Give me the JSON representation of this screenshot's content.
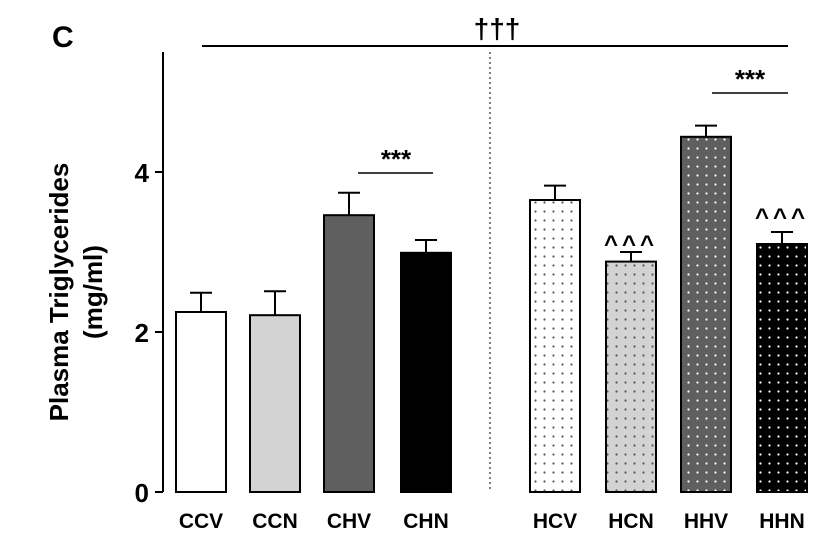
{
  "panel_label": "C",
  "chart_data": {
    "type": "bar",
    "title": "",
    "ylabel_line1": "Plasma Triglycerides",
    "ylabel_line2": "(mg/ml)",
    "xlabel": "",
    "ylim": [
      0,
      5.5
    ],
    "yticks": [
      "0",
      "2",
      "4"
    ],
    "grid": false,
    "categories": [
      "CCV",
      "CCN",
      "CHV",
      "CHN",
      "HCV",
      "HCN",
      "HHV",
      "HHN"
    ],
    "values": [
      2.25,
      2.21,
      3.46,
      2.99,
      3.65,
      2.88,
      4.44,
      3.1
    ],
    "errors": [
      0.24,
      0.3,
      0.28,
      0.16,
      0.18,
      0.12,
      0.14,
      0.15
    ],
    "fill_colors": [
      "#ffffff",
      "#d3d3d3",
      "#5f5f5f",
      "#000000",
      "#ffffff",
      "#d3d3d3",
      "#5f5f5f",
      "#000000"
    ],
    "dotted_pattern": [
      false,
      false,
      false,
      false,
      true,
      true,
      true,
      true
    ],
    "annotations": {
      "overall": "†††",
      "chv_vs_chn": "***",
      "hhv_vs_hhn": "***",
      "hcn_marker": "^^^",
      "hhn_marker": "^^^"
    }
  }
}
